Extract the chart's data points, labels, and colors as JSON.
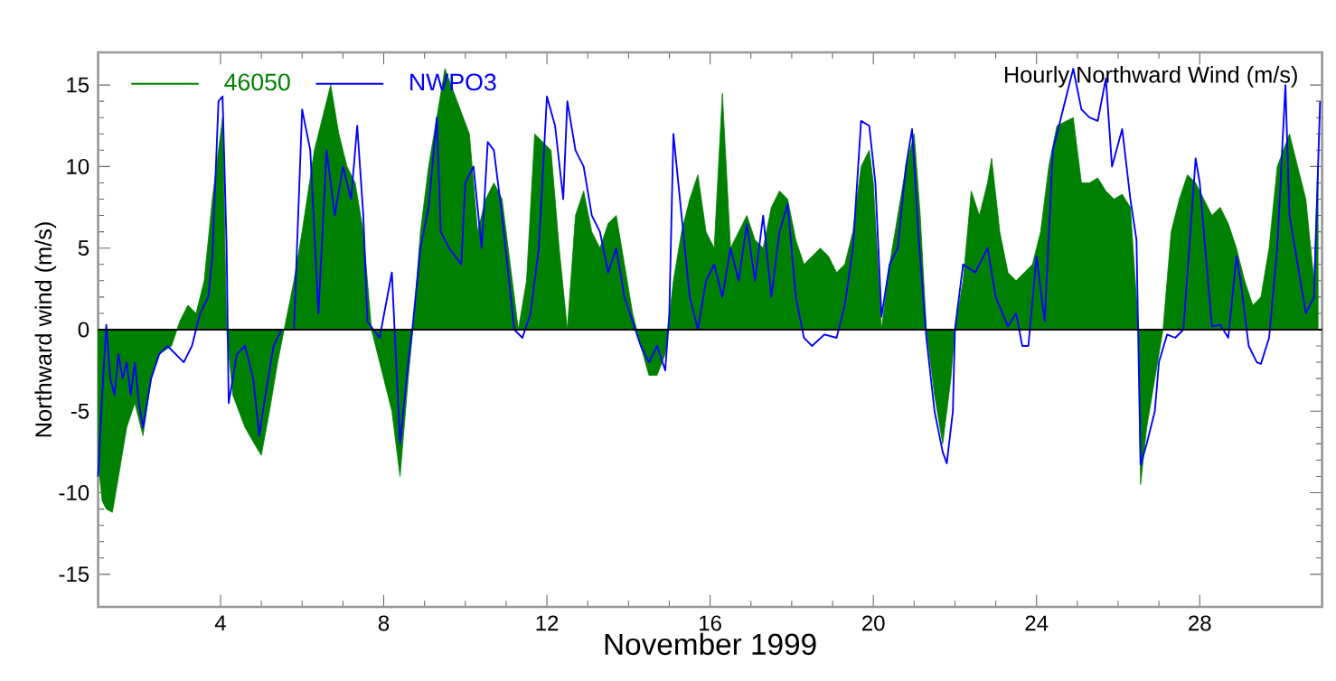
{
  "chart_data": {
    "type": "area",
    "title": "Hourly Northward Wind (m/s)",
    "xlabel": "November 1999",
    "ylabel": "Northward wind (m/s)",
    "xlim": [
      1,
      31
    ],
    "xticks": [
      4,
      8,
      12,
      16,
      20,
      24,
      28
    ],
    "ylim": [
      -17,
      17
    ],
    "yticks": [
      -15,
      -10,
      -5,
      0,
      5,
      10,
      15
    ],
    "legend": "top left",
    "marker": "none",
    "ref_lines": [
      {
        "axis": "y",
        "value": 0,
        "color": "#000000"
      }
    ],
    "series": [
      {
        "name": "46050",
        "color": "#008000",
        "x": [
          1.0,
          1.1,
          1.2,
          1.35,
          1.5,
          1.7,
          1.9,
          2.1,
          2.3,
          2.5,
          2.8,
          3.0,
          3.2,
          3.4,
          3.6,
          3.8,
          3.95,
          4.05,
          4.15,
          4.3,
          4.6,
          4.9,
          5.0,
          5.2,
          5.4,
          5.6,
          5.8,
          6.0,
          6.3,
          6.5,
          6.7,
          6.9,
          7.1,
          7.3,
          7.5,
          7.7,
          8.0,
          8.2,
          8.4,
          8.6,
          8.75,
          8.9,
          9.1,
          9.3,
          9.5,
          9.7,
          9.9,
          10.1,
          10.3,
          10.5,
          10.7,
          10.9,
          11.1,
          11.3,
          11.5,
          11.7,
          11.9,
          12.1,
          12.3,
          12.5,
          12.7,
          12.9,
          13.1,
          13.3,
          13.5,
          13.7,
          13.9,
          14.1,
          14.3,
          14.5,
          14.7,
          14.9,
          15.1,
          15.3,
          15.5,
          15.7,
          15.9,
          16.1,
          16.3,
          16.5,
          16.7,
          16.9,
          17.1,
          17.3,
          17.5,
          17.7,
          17.9,
          18.1,
          18.3,
          18.5,
          18.7,
          18.9,
          19.1,
          19.3,
          19.5,
          19.7,
          19.9,
          20.0,
          20.2,
          20.4,
          20.6,
          20.8,
          21.0,
          21.15,
          21.3,
          21.5,
          21.7,
          21.9,
          22.0,
          22.2,
          22.4,
          22.6,
          22.8,
          22.9,
          23.1,
          23.3,
          23.5,
          23.7,
          23.9,
          24.1,
          24.3,
          24.5,
          24.7,
          24.9,
          25.1,
          25.3,
          25.5,
          25.7,
          25.9,
          26.1,
          26.3,
          26.5,
          26.55,
          26.7,
          26.9,
          27.1,
          27.3,
          27.5,
          27.7,
          27.9,
          28.1,
          28.3,
          28.5,
          28.7,
          28.9,
          29.1,
          29.3,
          29.5,
          29.7,
          29.9,
          30.0,
          30.2,
          30.4,
          30.6,
          30.8,
          30.9
        ],
        "values": [
          -8,
          -10.5,
          -11,
          -11.2,
          -9,
          -6,
          -4.5,
          -6.5,
          -3,
          -1.5,
          -1,
          0.5,
          1.5,
          1,
          3,
          8,
          11,
          13,
          0,
          -4,
          -6,
          -7.3,
          -7.7,
          -5,
          -2,
          0.5,
          3,
          6,
          11,
          13,
          15,
          12,
          10,
          9,
          6,
          0,
          -3,
          -5,
          -9,
          -3,
          1,
          6,
          10,
          13,
          16,
          null,
          null,
          12,
          6,
          8,
          9,
          8,
          4,
          0,
          3,
          12,
          null,
          11,
          5,
          0,
          7,
          8.5,
          6,
          5,
          6.5,
          7,
          4,
          1,
          -1,
          -2.8,
          -2.8,
          -1.5,
          3,
          6,
          8,
          9.5,
          6,
          5,
          14.5,
          5,
          6,
          7,
          5.5,
          5,
          7.5,
          8.5,
          8,
          5.5,
          4,
          4.5,
          5,
          4.5,
          3.5,
          4,
          6,
          10,
          11,
          9,
          0,
          4,
          7,
          10,
          12,
          7,
          0,
          -4,
          -7,
          -3,
          0,
          3,
          8.5,
          7,
          9,
          10.5,
          6,
          3.5,
          3,
          3.5,
          4,
          6,
          10,
          12.5,
          null,
          13,
          9,
          9,
          9.3,
          8.5,
          8,
          8.3,
          7.5,
          0,
          -9.5,
          -6,
          -3,
          0,
          6,
          8,
          9.5,
          9,
          8,
          7,
          7.5,
          6.5,
          5,
          3,
          1.5,
          2,
          5,
          10,
          null,
          12,
          10,
          8,
          3,
          10
        ]
      },
      {
        "name": "NWPO3",
        "type": "line",
        "color": "#0000ff",
        "x": [
          1.0,
          1.1,
          1.2,
          1.3,
          1.4,
          1.5,
          1.6,
          1.7,
          1.8,
          1.9,
          2.0,
          2.1,
          2.3,
          2.5,
          2.7,
          2.9,
          3.1,
          3.3,
          3.5,
          3.7,
          3.8,
          3.95,
          4.05,
          4.15,
          4.2,
          4.4,
          4.6,
          4.8,
          4.95,
          5.1,
          5.3,
          5.5,
          5.8,
          6.0,
          6.2,
          6.4,
          6.6,
          6.8,
          7.0,
          7.2,
          7.35,
          7.5,
          7.6,
          7.9,
          8.2,
          8.4,
          8.6,
          8.7,
          8.9,
          9.1,
          9.3,
          9.4,
          9.6,
          9.7,
          9.9,
          10.0,
          10.2,
          10.4,
          10.55,
          10.7,
          10.9,
          11.2,
          11.4,
          11.6,
          11.8,
          12.0,
          12.2,
          12.4,
          12.5,
          12.7,
          12.9,
          13.1,
          13.3,
          13.5,
          13.7,
          13.9,
          14.1,
          14.3,
          14.5,
          14.7,
          14.9,
          15.0,
          15.1,
          15.3,
          15.5,
          15.7,
          15.9,
          16.1,
          16.3,
          16.5,
          16.7,
          16.9,
          17.1,
          17.3,
          17.5,
          17.7,
          17.9,
          18.1,
          18.3,
          18.5,
          18.8,
          19.1,
          19.3,
          19.5,
          19.7,
          19.9,
          20.05,
          20.2,
          20.4,
          20.6,
          20.8,
          20.95,
          21.1,
          21.3,
          21.5,
          21.7,
          21.8,
          21.95,
          22.0,
          22.2,
          22.5,
          22.8,
          23.0,
          23.3,
          23.5,
          23.65,
          23.8,
          24.0,
          24.2,
          24.4,
          24.6,
          24.75,
          24.9,
          25.1,
          25.3,
          25.5,
          25.7,
          25.85,
          26.1,
          26.3,
          26.45,
          26.55,
          26.7,
          26.9,
          27.0,
          27.2,
          27.4,
          27.6,
          27.8,
          27.9,
          28.0,
          28.1,
          28.3,
          28.5,
          28.7,
          28.9,
          29.0,
          29.2,
          29.4,
          29.5,
          29.7,
          29.9,
          30.1,
          30.2,
          30.4,
          30.6,
          30.8,
          30.95
        ],
        "values": [
          -9,
          -4,
          0.3,
          -3,
          -4,
          -1.5,
          -3,
          -2,
          -4,
          -2,
          -4.5,
          -6,
          -3,
          -1.5,
          -1,
          -1.5,
          -2,
          -1,
          1,
          2,
          4.5,
          14,
          14.3,
          5,
          -4.5,
          -1.5,
          -1,
          -3,
          -6.5,
          -4,
          -1,
          0,
          0,
          13.5,
          11,
          1,
          11,
          7,
          10,
          8,
          12.5,
          7,
          0.5,
          -0.5,
          3.5,
          -7,
          -2,
          0,
          5,
          7.5,
          13,
          6,
          5,
          null,
          4,
          9,
          10,
          5,
          11.5,
          11,
          7,
          0,
          -0.5,
          1,
          5,
          14.3,
          12.5,
          8,
          14,
          11,
          10,
          7,
          6,
          3.5,
          5,
          2,
          0.5,
          -1,
          -2,
          -1,
          -2.5,
          1,
          12,
          7,
          2,
          0,
          3,
          4,
          2,
          5,
          3,
          6.5,
          3,
          7,
          2,
          6,
          7.7,
          2,
          -0.5,
          -1,
          -0.3,
          -0.5,
          1.5,
          5,
          12.8,
          12.5,
          9,
          0.8,
          4,
          5,
          10,
          12.3,
          6,
          -0.5,
          -5,
          -7.5,
          -8.2,
          -5,
          0,
          4,
          3.5,
          5,
          2,
          0.2,
          1,
          -1,
          -1,
          4.5,
          0.5,
          11,
          13,
          null,
          16,
          13.5,
          13,
          12.8,
          15.4,
          10,
          12.3,
          8,
          5.5,
          -8.3,
          -7,
          -5,
          -2,
          -0.3,
          -0.5,
          0,
          7,
          10.5,
          9,
          6,
          0.2,
          0.3,
          -0.5,
          4.5,
          3,
          -1,
          -2,
          -2.1,
          -0.5,
          5,
          15,
          7,
          4,
          1,
          2,
          14
        ]
      }
    ]
  }
}
